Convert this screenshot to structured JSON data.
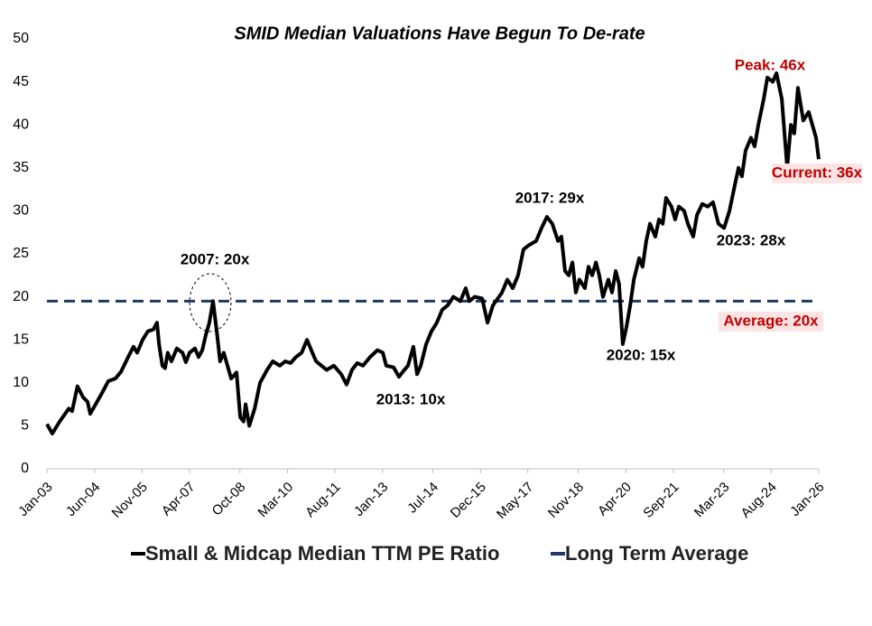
{
  "chart_data": {
    "type": "line",
    "title": "SMID Median Valuations Have Begun To De-rate",
    "xlim": [
      2003,
      2026
    ],
    "xticks": [
      {
        "value": 2003.0,
        "label": "Jan-03"
      },
      {
        "value": 2004.42,
        "label": "Jun-04"
      },
      {
        "value": 2005.83,
        "label": "Nov-05"
      },
      {
        "value": 2007.25,
        "label": "Apr-07"
      },
      {
        "value": 2008.75,
        "label": "Oct-08"
      },
      {
        "value": 2010.17,
        "label": "Mar-10"
      },
      {
        "value": 2011.58,
        "label": "Aug-11"
      },
      {
        "value": 2013.0,
        "label": "Jan-13"
      },
      {
        "value": 2014.5,
        "label": "Jul-14"
      },
      {
        "value": 2015.92,
        "label": "Dec-15"
      },
      {
        "value": 2017.33,
        "label": "May-17"
      },
      {
        "value": 2018.83,
        "label": "Nov-18"
      },
      {
        "value": 2020.25,
        "label": "Apr-20"
      },
      {
        "value": 2021.67,
        "label": "Sep-21"
      },
      {
        "value": 2023.17,
        "label": "Mar-23"
      },
      {
        "value": 2024.58,
        "label": "Aug-24"
      },
      {
        "value": 2026.0,
        "label": "Jan-26"
      }
    ],
    "ylim": [
      0,
      50
    ],
    "yticks": [
      0,
      5,
      10,
      15,
      20,
      25,
      30,
      35,
      40,
      45,
      50
    ],
    "grid": false,
    "series": [
      {
        "name": "Small & Midcap Median TTM PE Ratio",
        "color": "#000000",
        "dash": false,
        "x": [
          2003.0,
          2003.16,
          2003.38,
          2003.65,
          2003.75,
          2003.91,
          2004.08,
          2004.21,
          2004.29,
          2004.45,
          2004.61,
          2004.83,
          2005.04,
          2005.21,
          2005.42,
          2005.58,
          2005.69,
          2005.85,
          2006.01,
          2006.17,
          2006.28,
          2006.34,
          2006.44,
          2006.52,
          2006.6,
          2006.71,
          2006.87,
          2007.04,
          2007.14,
          2007.25,
          2007.41,
          2007.52,
          2007.63,
          2007.73,
          2007.84,
          2007.95,
          2008.06,
          2008.16,
          2008.27,
          2008.38,
          2008.49,
          2008.65,
          2008.76,
          2008.86,
          2008.92,
          2009.03,
          2009.19,
          2009.35,
          2009.56,
          2009.73,
          2009.94,
          2010.1,
          2010.26,
          2010.42,
          2010.59,
          2010.75,
          2010.91,
          2011.02,
          2011.18,
          2011.34,
          2011.55,
          2011.77,
          2011.93,
          2012.09,
          2012.25,
          2012.42,
          2012.63,
          2012.85,
          2013.01,
          2013.11,
          2013.33,
          2013.49,
          2013.65,
          2013.76,
          2013.92,
          2014.03,
          2014.14,
          2014.3,
          2014.46,
          2014.62,
          2014.78,
          2014.94,
          2015.11,
          2015.32,
          2015.48,
          2015.59,
          2015.75,
          2015.97,
          2016.13,
          2016.29,
          2016.56,
          2016.72,
          2016.88,
          2017.04,
          2017.2,
          2017.36,
          2017.58,
          2017.74,
          2017.9,
          2018.06,
          2018.23,
          2018.33,
          2018.44,
          2018.55,
          2018.66,
          2018.76,
          2018.87,
          2019.03,
          2019.14,
          2019.25,
          2019.36,
          2019.46,
          2019.57,
          2019.73,
          2019.84,
          2019.95,
          2020.05,
          2020.16,
          2020.27,
          2020.38,
          2020.49,
          2020.65,
          2020.75,
          2020.86,
          2020.97,
          2021.13,
          2021.24,
          2021.35,
          2021.45,
          2021.61,
          2021.72,
          2021.83,
          2021.99,
          2022.1,
          2022.26,
          2022.37,
          2022.53,
          2022.69,
          2022.85,
          2023.01,
          2023.18,
          2023.34,
          2023.5,
          2023.61,
          2023.71,
          2023.82,
          2023.98,
          2024.09,
          2024.2,
          2024.36,
          2024.47,
          2024.63,
          2024.74,
          2024.9,
          2025.06,
          2025.17,
          2025.27,
          2025.38,
          2025.54,
          2025.7,
          2025.81,
          2025.92,
          2026.0
        ],
        "values": [
          5.2,
          4.1,
          5.5,
          7,
          6.7,
          9.6,
          8.3,
          7.8,
          6.4,
          7.5,
          8.6,
          10.2,
          10.5,
          11.3,
          13,
          14.2,
          13.5,
          15,
          16,
          16.2,
          17,
          14.5,
          12,
          11.7,
          13.5,
          12.5,
          14,
          13.5,
          12.4,
          13.5,
          14,
          13,
          13.8,
          15.5,
          17,
          19.5,
          16,
          12.5,
          13.5,
          12,
          10.5,
          11.2,
          6,
          5.5,
          7.5,
          5,
          7,
          10,
          11.5,
          12.5,
          12,
          12.5,
          12.3,
          13,
          13.5,
          15,
          13.5,
          12.5,
          12,
          11.5,
          12,
          11,
          9.8,
          11.5,
          12.3,
          12,
          13,
          13.8,
          13.5,
          12,
          11.8,
          10.7,
          11.5,
          12,
          14.2,
          11,
          12,
          14.5,
          16,
          17,
          18.5,
          19,
          20,
          19.5,
          21,
          19.5,
          20,
          19.8,
          17,
          19,
          20.5,
          22,
          21,
          22.5,
          25.5,
          26,
          26.5,
          28,
          29.3,
          28.5,
          26.5,
          27,
          23,
          22.5,
          24,
          20.5,
          22,
          21,
          23.5,
          22.5,
          24,
          22.5,
          20,
          22,
          20.5,
          23,
          21.5,
          14.5,
          16.5,
          19,
          22,
          24.5,
          23.5,
          26.5,
          28.5,
          27,
          29,
          28.5,
          31.5,
          30.5,
          29,
          30.5,
          30,
          28.5,
          27,
          29.5,
          30.8,
          30.5,
          31,
          28.5,
          28,
          30,
          33,
          35,
          34,
          37,
          38.5,
          37.5,
          40,
          43,
          45.5,
          45,
          46,
          43,
          35,
          40,
          39,
          44.3,
          40.5,
          41.5,
          40,
          38.5,
          36
        ]
      },
      {
        "name": "Long Term Average",
        "color": "#1f3864",
        "dash": true,
        "x": [
          2003,
          2026
        ],
        "values": [
          19.5,
          19.5
        ]
      }
    ],
    "annotations": [
      {
        "text": "2007: 20x",
        "color": "#000000"
      },
      {
        "text": "2013: 10x",
        "color": "#000000"
      },
      {
        "text": "2017: 29x",
        "color": "#000000"
      },
      {
        "text": "2020: 15x",
        "color": "#000000"
      },
      {
        "text": "2023: 28x",
        "color": "#000000"
      },
      {
        "text": "Peak: 46x",
        "color": "#c00000"
      },
      {
        "text": "Current: 36x",
        "color": "#c00000"
      },
      {
        "text": "Average: 20x",
        "color": "#c00000"
      }
    ]
  }
}
